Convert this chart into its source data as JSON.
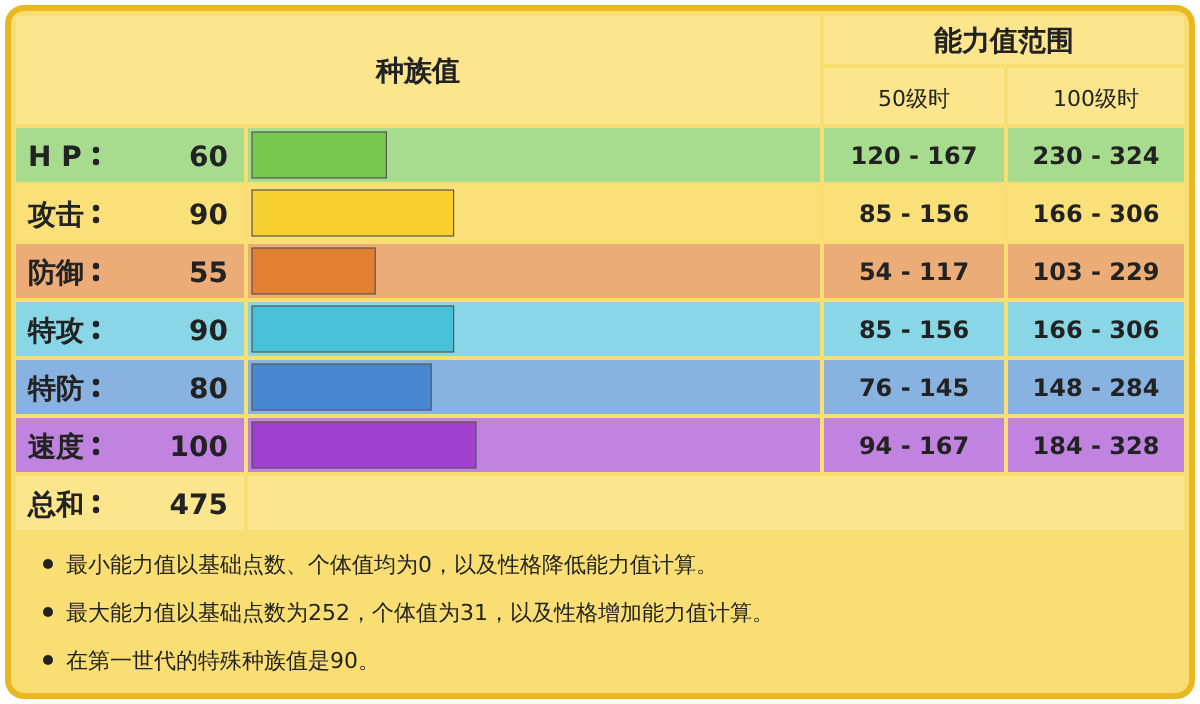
{
  "chart_data": {
    "type": "bar",
    "orientation": "horizontal",
    "title": "种族值",
    "categories": [
      "H P",
      "攻击",
      "防御",
      "特攻",
      "特防",
      "速度"
    ],
    "values": [
      60,
      90,
      55,
      90,
      80,
      100
    ],
    "colors": [
      "#78c850",
      "#f8d030",
      "#e08030",
      "#48c0d8",
      "#4888d0",
      "#a040d0"
    ],
    "data_labels": true,
    "annotations": [
      "能力值范围",
      "50级时",
      "100级时",
      "120 - 167",
      "230 - 324",
      "85 - 156",
      "166 - 306",
      "54 - 117",
      "103 - 229",
      "85 - 156",
      "166 - 306",
      "76 - 145",
      "148 - 284",
      "94 - 167",
      "184 - 328",
      "总和",
      "475",
      "最小能力值以基础点数、个体值均为0，以及性格降低能力值计算。",
      "最大能力值以基础点数为252，个体值为31，以及性格增加能力值计算。",
      "在第一世代的特殊种族值是90。"
    ]
  }
}
